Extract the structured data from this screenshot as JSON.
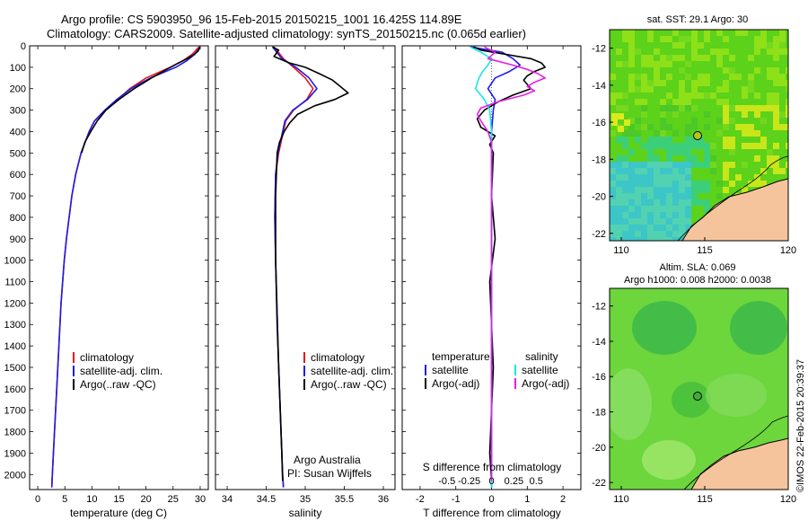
{
  "header": {
    "line1": "Argo profile: CS 5903950_96 15-Feb-2015 20150215_1001 16.425S 114.89E",
    "line2": "Climatology: CARS2009. Satellite-adjusted climatology: synTS_20150215.nc (0.065d earlier)"
  },
  "credit": "©IMOS 22-Feb-2015 20:39:37",
  "colors": {
    "climatology": "#e8141e",
    "satellite": "#1d1de6",
    "argo": "#000000",
    "satellite_salinity": "#18e6e6",
    "argo_salinity": "#e61ee6",
    "land": "#f6c49c"
  },
  "chart_data": [
    {
      "type": "line",
      "id": "temperature",
      "xlabel": "temperature (deg C)",
      "xlim": [
        -1.5,
        31.5
      ],
      "xticks": [
        0,
        5,
        10,
        15,
        20,
        25,
        30
      ],
      "ylim": [
        2070,
        0
      ],
      "yticks": [
        0,
        100,
        200,
        300,
        400,
        500,
        600,
        700,
        800,
        900,
        1000,
        1100,
        1200,
        1300,
        1400,
        1500,
        1600,
        1700,
        1800,
        1900,
        2000
      ],
      "legend": [
        "climatology",
        "satellite-adj. clim.",
        "Argo(..raw -QC)"
      ],
      "series": [
        {
          "name": "climatology",
          "color": "#e8141e",
          "depth": [
            5,
            40,
            70,
            100,
            150,
            200,
            250,
            300,
            350,
            400,
            500,
            600,
            700,
            800,
            900,
            1000,
            1200,
            1400,
            1600,
            1800,
            2000,
            2060
          ],
          "values": [
            29.8,
            28.5,
            26.8,
            24.5,
            20.0,
            17.0,
            14.8,
            12.5,
            10.5,
            9.5,
            8.0,
            7.0,
            6.3,
            5.8,
            5.3,
            4.9,
            4.3,
            3.9,
            3.5,
            3.1,
            2.7,
            2.6
          ]
        },
        {
          "name": "satellite-adj. clim.",
          "color": "#1d1de6",
          "depth": [
            5,
            40,
            70,
            100,
            150,
            200,
            250,
            300,
            350,
            400,
            500,
            600,
            700,
            800,
            900,
            1000,
            1200,
            1400,
            1600,
            1800,
            2000,
            2060
          ],
          "values": [
            30.0,
            29.0,
            27.5,
            25.5,
            20.8,
            17.2,
            14.6,
            12.4,
            10.5,
            9.5,
            8.0,
            7.0,
            6.3,
            5.8,
            5.3,
            4.9,
            4.3,
            3.9,
            3.5,
            3.1,
            2.7,
            2.6
          ]
        },
        {
          "name": "Argo(..raw -QC)",
          "color": "#000000",
          "depth": [
            5,
            25,
            40,
            60,
            80,
            100,
            150,
            200,
            250,
            300,
            350,
            400,
            450,
            500
          ],
          "values": [
            30.0,
            29.6,
            28.9,
            27.6,
            26.0,
            24.5,
            21.0,
            17.8,
            15.0,
            12.6,
            11.0,
            9.8,
            8.7,
            8.1
          ]
        }
      ]
    },
    {
      "type": "line",
      "id": "salinity",
      "xlabel": "salinity",
      "xlim": [
        33.85,
        36.15
      ],
      "xticks": [
        34,
        34.5,
        35,
        35.5,
        36
      ],
      "ylim": [
        2070,
        0
      ],
      "legend": [
        "climatology",
        "satellite-adj. clim.",
        "Argo(..raw -QC)"
      ],
      "annotations": [
        "Argo Australia",
        "PI: Susan Wijffels"
      ],
      "series": [
        {
          "name": "climatology",
          "color": "#e8141e",
          "depth": [
            5,
            60,
            100,
            150,
            200,
            250,
            300,
            350,
            400,
            500,
            600,
            800,
            1000,
            1500,
            2000,
            2060
          ],
          "values": [
            34.6,
            34.72,
            34.85,
            35.0,
            35.1,
            35.02,
            34.85,
            34.75,
            34.72,
            34.66,
            34.62,
            34.61,
            34.62,
            34.66,
            34.71,
            34.72
          ]
        },
        {
          "name": "satellite-adj. clim.",
          "color": "#1d1de6",
          "depth": [
            5,
            60,
            100,
            150,
            200,
            250,
            300,
            350,
            400,
            500,
            600,
            800,
            1000,
            1500,
            2000,
            2060
          ],
          "values": [
            34.58,
            34.7,
            34.88,
            35.05,
            35.15,
            35.03,
            34.84,
            34.74,
            34.71,
            34.65,
            34.62,
            34.61,
            34.62,
            34.66,
            34.71,
            34.72
          ]
        },
        {
          "name": "Argo(..raw -QC)",
          "color": "#000000",
          "depth": [
            5,
            20,
            50,
            80,
            100,
            130,
            160,
            190,
            220,
            250,
            280,
            320,
            360,
            400,
            450,
            500,
            700,
            1000,
            1300,
            1600,
            1900,
            2030
          ],
          "values": [
            34.58,
            34.66,
            34.6,
            34.8,
            35.0,
            35.18,
            35.35,
            35.45,
            35.55,
            35.38,
            35.12,
            34.9,
            34.8,
            34.73,
            34.67,
            34.64,
            34.62,
            34.62,
            34.64,
            34.67,
            34.7,
            34.71
          ]
        }
      ]
    },
    {
      "type": "line",
      "id": "differences",
      "xlabel": "T difference from climatology",
      "xlabel_top": "S difference from climatology",
      "xlim": [
        -2.5,
        2.5
      ],
      "xticks": [
        -2,
        -1,
        0,
        1,
        2
      ],
      "xtick_labels": [
        "-2",
        "-1",
        "0",
        "1",
        "2"
      ],
      "xticks_s": [
        -1.25,
        -0.625,
        0,
        0.625,
        1.25
      ],
      "xtick_labels_s": [
        "-0.5",
        "-0.25",
        "0",
        "0.25",
        "0.5"
      ],
      "ylim": [
        2070,
        0
      ],
      "legend": {
        "temperature": [
          "satellite",
          "Argo(-adj)"
        ],
        "salinity": [
          "satellite",
          "Argo(-adj)"
        ]
      },
      "legend_titles": [
        "temperature",
        "salinity"
      ],
      "series": [
        {
          "name": "T satellite",
          "color": "#1d1de6",
          "depth": [
            5,
            30,
            60,
            90,
            120,
            150,
            200,
            250,
            300,
            400,
            500,
            700,
            1000,
            1500,
            2000,
            2060
          ],
          "values": [
            -0.6,
            0.3,
            0.6,
            0.8,
            0.5,
            0.1,
            -0.1,
            0.1,
            0.05,
            0.0,
            0.0,
            0.0,
            0.0,
            0.0,
            0.0,
            0.0
          ]
        },
        {
          "name": "T Argo(-adj)",
          "color": "#000000",
          "depth": [
            5,
            20,
            40,
            60,
            80,
            100,
            120,
            140,
            160,
            180,
            200,
            230,
            260,
            300,
            340,
            380,
            420,
            460,
            500,
            700,
            900,
            1100,
            1300,
            1500,
            1700,
            1900,
            2030
          ],
          "values": [
            -0.5,
            -0.3,
            0.4,
            1.1,
            1.4,
            1.5,
            1.2,
            1.0,
            0.9,
            1.0,
            1.1,
            0.6,
            0.2,
            -0.2,
            -0.4,
            -0.3,
            0.1,
            -0.05,
            0.05,
            0.0,
            0.1,
            -0.05,
            0.0,
            0.05,
            0.0,
            -0.05,
            0.0
          ]
        },
        {
          "name": "S satellite",
          "color": "#18e6e6",
          "depth": [
            5,
            30,
            60,
            90,
            120,
            150,
            200,
            250,
            300,
            400,
            500,
            700,
            1000,
            1500,
            2000,
            2060
          ],
          "values": [
            -0.6,
            -0.3,
            0.0,
            -0.1,
            -0.25,
            -0.35,
            -0.45,
            -0.2,
            -0.05,
            0.0,
            0.0,
            0.0,
            0.0,
            0.0,
            0.0,
            0.0
          ]
        },
        {
          "name": "S Argo(-adj)",
          "color": "#e61ee6",
          "depth": [
            5,
            30,
            60,
            90,
            110,
            130,
            150,
            170,
            190,
            210,
            230,
            260,
            290,
            320,
            350,
            400,
            450,
            500,
            700,
            1000,
            1500,
            2030
          ],
          "values": [
            -0.2,
            0.1,
            -0.1,
            0.6,
            1.0,
            1.3,
            1.5,
            1.2,
            1.0,
            1.2,
            0.9,
            0.2,
            -0.3,
            -0.4,
            -0.3,
            -0.1,
            0.0,
            0.0,
            0.0,
            0.0,
            0.0,
            0.0
          ]
        }
      ]
    },
    {
      "type": "heatmap",
      "id": "sst_map",
      "title": "sat. SST: 29.1 Argo: 30",
      "xlim": [
        109.3,
        120
      ],
      "ylim": [
        -22.4,
        -11
      ],
      "xticks": [
        110,
        115,
        120
      ],
      "yticks": [
        -12,
        -14,
        -16,
        -18,
        -20,
        -22
      ],
      "argo_position": {
        "lon": 114.89,
        "lat": -16.425
      }
    },
    {
      "type": "heatmap",
      "id": "sla_map",
      "title": "Altim. SLA: 0.069",
      "subtitle": "Argo h1000: 0.008 h2000: 0.0038",
      "xlim": [
        109.3,
        120
      ],
      "ylim": [
        -22.4,
        -11
      ],
      "xticks": [
        110,
        115,
        120
      ],
      "yticks": [
        -12,
        -14,
        -16,
        -18,
        -20,
        -22
      ],
      "argo_position": {
        "lon": 114.89,
        "lat": -16.425
      }
    }
  ]
}
